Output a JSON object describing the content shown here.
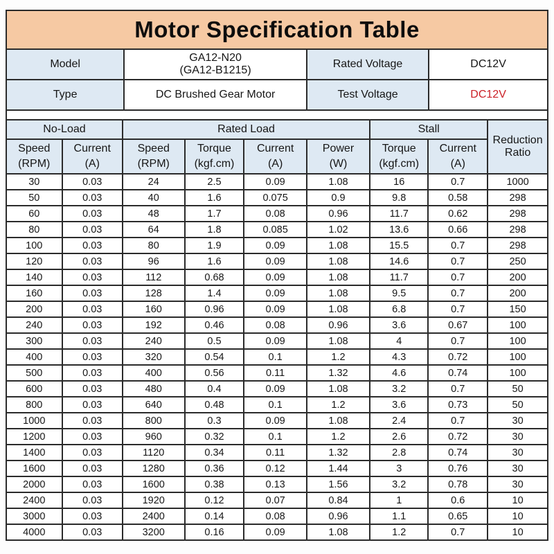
{
  "title": "Motor Specification Table",
  "info": {
    "rows": [
      {
        "label_left": "Model",
        "value_left": "GA12-N20\n(GA12-B1215)",
        "label_right": "Rated Voltage",
        "value_right": "DC12V"
      },
      {
        "label_left": "Type",
        "value_left": "DC Brushed Gear Motor",
        "label_right": "Test Voltage",
        "value_right": "DC12V"
      }
    ]
  },
  "spec_table": {
    "group_headers": [
      {
        "label": "No-Load",
        "colspan": 2
      },
      {
        "label": "Rated Load",
        "colspan": 4
      },
      {
        "label": "Stall",
        "colspan": 2
      }
    ],
    "reduction_ratio_label": "Reduction Ratio",
    "column_headers": [
      "Speed\n(RPM)",
      "Current\n(A)",
      "Speed\n(RPM)",
      "Torque\n(kgf.cm)",
      "Current\n(A)",
      "Power\n(W)",
      "Torque\n(kgf.cm)",
      "Current\n(A)"
    ],
    "rows": [
      [
        "30",
        "0.03",
        "24",
        "2.5",
        "0.09",
        "1.08",
        "16",
        "0.7",
        "1000"
      ],
      [
        "50",
        "0.03",
        "40",
        "1.6",
        "0.075",
        "0.9",
        "9.8",
        "0.58",
        "298"
      ],
      [
        "60",
        "0.03",
        "48",
        "1.7",
        "0.08",
        "0.96",
        "11.7",
        "0.62",
        "298"
      ],
      [
        "80",
        "0.03",
        "64",
        "1.8",
        "0.085",
        "1.02",
        "13.6",
        "0.66",
        "298"
      ],
      [
        "100",
        "0.03",
        "80",
        "1.9",
        "0.09",
        "1.08",
        "15.5",
        "0.7",
        "298"
      ],
      [
        "120",
        "0.03",
        "96",
        "1.6",
        "0.09",
        "1.08",
        "14.6",
        "0.7",
        "250"
      ],
      [
        "140",
        "0.03",
        "112",
        "0.68",
        "0.09",
        "1.08",
        "11.7",
        "0.7",
        "200"
      ],
      [
        "160",
        "0.03",
        "128",
        "1.4",
        "0.09",
        "1.08",
        "9.5",
        "0.7",
        "200"
      ],
      [
        "200",
        "0.03",
        "160",
        "0.96",
        "0.09",
        "1.08",
        "6.8",
        "0.7",
        "150"
      ],
      [
        "240",
        "0.03",
        "192",
        "0.46",
        "0.08",
        "0.96",
        "3.6",
        "0.67",
        "100"
      ],
      [
        "300",
        "0.03",
        "240",
        "0.5",
        "0.09",
        "1.08",
        "4",
        "0.7",
        "100"
      ],
      [
        "400",
        "0.03",
        "320",
        "0.54",
        "0.1",
        "1.2",
        "4.3",
        "0.72",
        "100"
      ],
      [
        "500",
        "0.03",
        "400",
        "0.56",
        "0.11",
        "1.32",
        "4.6",
        "0.74",
        "100"
      ],
      [
        "600",
        "0.03",
        "480",
        "0.4",
        "0.09",
        "1.08",
        "3.2",
        "0.7",
        "50"
      ],
      [
        "800",
        "0.03",
        "640",
        "0.48",
        "0.1",
        "1.2",
        "3.6",
        "0.73",
        "50"
      ],
      [
        "1000",
        "0.03",
        "800",
        "0.3",
        "0.09",
        "1.08",
        "2.4",
        "0.7",
        "30"
      ],
      [
        "1200",
        "0.03",
        "960",
        "0.32",
        "0.1",
        "1.2",
        "2.6",
        "0.72",
        "30"
      ],
      [
        "1400",
        "0.03",
        "1120",
        "0.34",
        "0.11",
        "1.32",
        "2.8",
        "0.74",
        "30"
      ],
      [
        "1600",
        "0.03",
        "1280",
        "0.36",
        "0.12",
        "1.44",
        "3",
        "0.76",
        "30"
      ],
      [
        "2000",
        "0.03",
        "1600",
        "0.38",
        "0.13",
        "1.56",
        "3.2",
        "0.78",
        "30"
      ],
      [
        "2400",
        "0.03",
        "1920",
        "0.12",
        "0.07",
        "0.84",
        "1",
        "0.6",
        "10"
      ],
      [
        "3000",
        "0.03",
        "2400",
        "0.14",
        "0.08",
        "0.96",
        "1.1",
        "0.65",
        "10"
      ],
      [
        "4000",
        "0.03",
        "3200",
        "0.16",
        "0.09",
        "1.08",
        "1.2",
        "0.7",
        "10"
      ]
    ]
  },
  "colors": {
    "title_background": "#F6C9A3",
    "header_background": "#DEE9F3",
    "border": "#2B2B2B",
    "test_voltage_red": "#CB2026"
  }
}
